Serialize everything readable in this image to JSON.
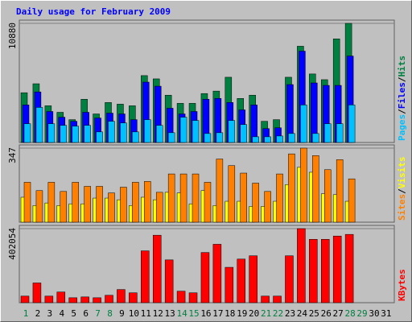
{
  "chart_data": [
    {
      "type": "bar",
      "title": "Daily usage for February 2009",
      "categories": [
        "1",
        "2",
        "3",
        "4",
        "5",
        "6",
        "7",
        "8",
        "9",
        "10",
        "11",
        "12",
        "13",
        "14",
        "15",
        "16",
        "17",
        "18",
        "19",
        "20",
        "21",
        "22",
        "23",
        "24",
        "25",
        "26",
        "27",
        "28",
        "29",
        "30",
        "31"
      ],
      "category_colors": [
        "#008040",
        "#000000",
        "#000000",
        "#000000",
        "#000000",
        "#000000",
        "#008040",
        "#008040",
        "#000000",
        "#000000",
        "#000000",
        "#000000",
        "#000000",
        "#008040",
        "#008040",
        "#000000",
        "#000000",
        "#000000",
        "#000000",
        "#000000",
        "#008040",
        "#008040",
        "#000000",
        "#000000",
        "#000000",
        "#000000",
        "#000000",
        "#008040",
        "#008040",
        "#000000",
        "#000000"
      ],
      "ylim": [
        0,
        10880
      ],
      "yticks": [
        10880
      ],
      "legend_separator": "/",
      "series": [
        {
          "name": "Hits",
          "color": "#008040",
          "values": [
            4545,
            5364,
            3353,
            2757,
            2086,
            3949,
            2608,
            3651,
            3502,
            3353,
            6109,
            5811,
            4321,
            3576,
            3576,
            4470,
            4694,
            5960,
            4023,
            4321,
            1937,
            2086,
            5960,
            8791,
            6258,
            5737,
            9462,
            10880,
            null,
            null,
            null
          ]
        },
        {
          "name": "Files",
          "color": "#0000ff",
          "values": [
            3427,
            4619,
            2831,
            2310,
            1937,
            2757,
            2235,
            2682,
            2608,
            2086,
            5513,
            5141,
            3129,
            2608,
            2831,
            3949,
            4023,
            3651,
            2980,
            3427,
            1267,
            1341,
            5290,
            8344,
            5439,
            5215,
            5215,
            7897,
            null,
            null,
            null
          ]
        },
        {
          "name": "Pages",
          "color": "#00c0ff",
          "values": [
            1714,
            3204,
            1714,
            1565,
            1490,
            1565,
            969,
            1937,
            1788,
            969,
            2086,
            1565,
            894,
            2310,
            2012,
            820,
            894,
            2012,
            1639,
            522,
            522,
            596,
            820,
            3427,
            820,
            1714,
            1714,
            3427,
            null,
            null,
            null
          ]
        }
      ]
    },
    {
      "type": "bar",
      "ylim": [
        0,
        347
      ],
      "yticks": [
        347
      ],
      "legend_separator": "/",
      "series": [
        {
          "name": "Visits",
          "color": "#ffff00",
          "values": [
            117,
            78,
            90,
            78,
            86,
            86,
            113,
            113,
            105,
            78,
            117,
            105,
            140,
            137,
            86,
            148,
            78,
            98,
            98,
            74,
            74,
            98,
            176,
            257,
            234,
            133,
            129,
            98,
            null,
            null,
            null
          ]
        },
        {
          "name": "Sites",
          "color": "#ff8000",
          "values": [
            187,
            148,
            187,
            144,
            187,
            168,
            168,
            137,
            164,
            187,
            191,
            140,
            226,
            226,
            226,
            187,
            296,
            265,
            230,
            183,
            144,
            226,
            320,
            347,
            312,
            246,
            293,
            203,
            null,
            null,
            null
          ]
        }
      ]
    },
    {
      "type": "bar",
      "ylim": [
        0,
        402054
      ],
      "yticks": [
        402054
      ],
      "series": [
        {
          "name": "KBytes",
          "color": "#ff0000",
          "values": [
            35736,
            107208,
            35736,
            58071,
            26802,
            31269,
            26802,
            40203,
            71472,
            53604,
            281421,
            366294,
            232284,
            62538,
            53604,
            272487,
            317157,
            192081,
            236751,
            254619,
            35736,
            35736,
            254619,
            402054,
            343959,
            343959,
            361827,
            370761,
            null,
            null,
            null
          ]
        }
      ]
    }
  ]
}
